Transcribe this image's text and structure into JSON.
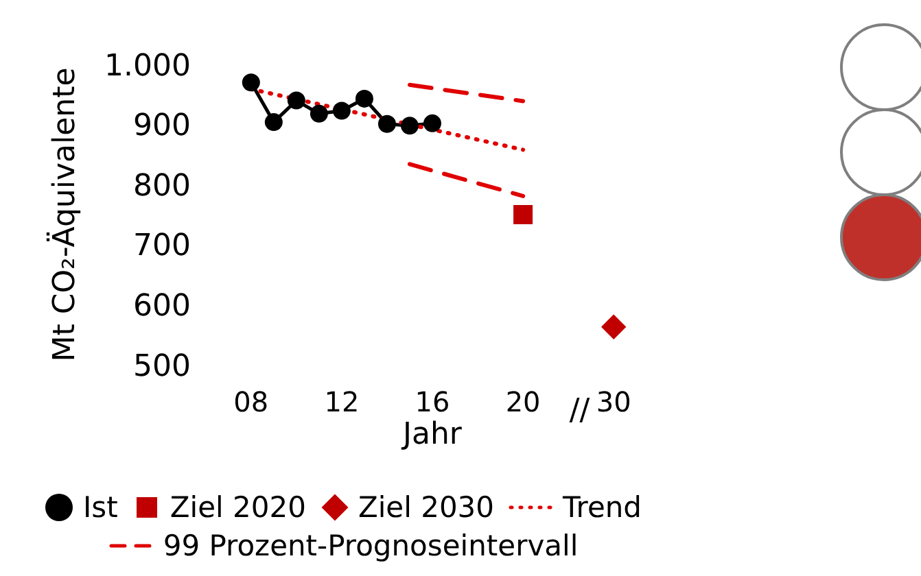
{
  "chart_data": {
    "type": "line",
    "ylabel": "Mt CO₂-Äquivalente",
    "xlabel": "Jahr",
    "categories": [
      "08",
      null,
      null,
      null,
      "12",
      null,
      null,
      null,
      "16",
      null,
      null,
      null,
      "20",
      null,
      null,
      null,
      "30"
    ],
    "ylim": [
      500,
      1000
    ],
    "yticks": [
      500,
      600,
      700,
      800,
      900,
      {
        "value": 1000,
        "label": "1.000"
      }
    ],
    "legend": "bottom",
    "annotations": [
      "//"
    ],
    "series": [
      {
        "name": "Ist",
        "color": "#000000",
        "marker": "circle",
        "line_style": "solid",
        "values": [
          970,
          904,
          940,
          918,
          923,
          943,
          901,
          898,
          902,
          null,
          null,
          null,
          null,
          null,
          null,
          null,
          null
        ]
      },
      {
        "name": "Ziel 2020",
        "type": "scatter",
        "color": "#c00000",
        "marker": "square",
        "values": [
          null,
          null,
          null,
          null,
          null,
          null,
          null,
          null,
          null,
          null,
          null,
          null,
          750,
          null,
          null,
          null,
          null
        ]
      },
      {
        "name": "Ziel 2030",
        "type": "scatter",
        "color": "#c00000",
        "marker": "diamond",
        "values": [
          null,
          null,
          null,
          null,
          null,
          null,
          null,
          null,
          null,
          null,
          null,
          null,
          null,
          null,
          null,
          null,
          563
        ]
      },
      {
        "name": "Trend",
        "color": "#e00000",
        "marker": "none",
        "line_style": "dotted",
        "values": [
          959,
          null,
          null,
          null,
          null,
          null,
          null,
          null,
          null,
          null,
          null,
          null,
          858,
          null,
          null,
          null,
          null
        ]
      },
      {
        "name": "99 Prozent-Prognoseintervall",
        "color": "#e00000",
        "marker": "none",
        "line_style": "dashed",
        "values": [
          null,
          null,
          null,
          null,
          null,
          null,
          null,
          966,
          null,
          null,
          null,
          null,
          939,
          null,
          null,
          null,
          null
        ]
      },
      {
        "color": "#e00000",
        "marker": "none",
        "line_style": "dashed",
        "values": [
          null,
          null,
          null,
          null,
          null,
          null,
          null,
          834,
          null,
          null,
          null,
          null,
          781,
          null,
          null,
          null,
          null
        ]
      }
    ]
  }
}
